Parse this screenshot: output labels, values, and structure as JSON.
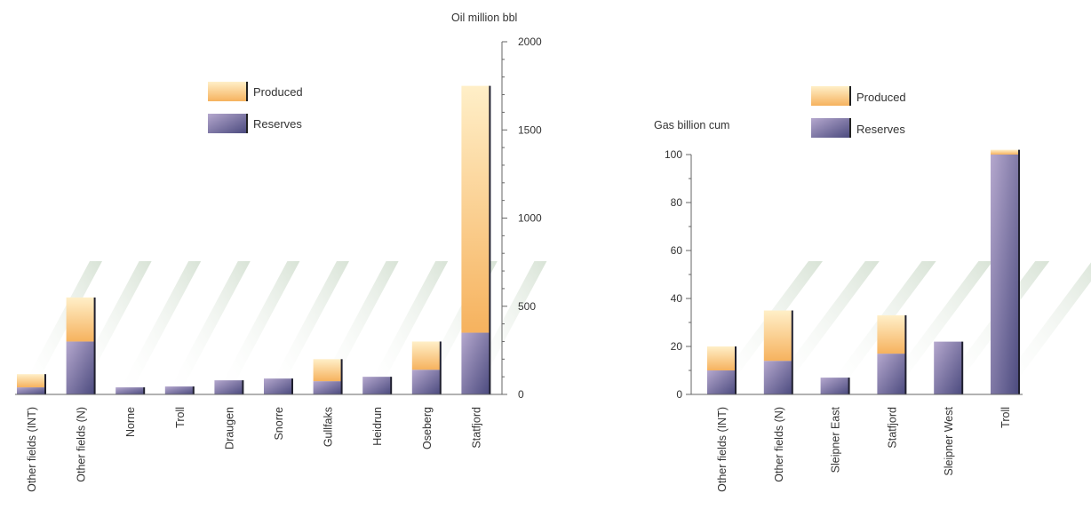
{
  "colors": {
    "produced_light": "#FFEFC8",
    "produced_dark": "#F6B25E",
    "reserves_light": "#B5A8CE",
    "reserves_dark": "#4B4A7E",
    "shadow": "#D8E3D6",
    "axis": "#666666"
  },
  "legend": {
    "produced": "Produced",
    "reserves": "Reserves"
  },
  "chart_data": [
    {
      "type": "bar",
      "stacked": true,
      "title": "",
      "ylabel": "Oil million bbl",
      "xlabel": "",
      "ylim": [
        0,
        2000
      ],
      "yticks": [
        0,
        500,
        1000,
        1500,
        2000
      ],
      "axis_side": "right",
      "legend_position": "top-center",
      "categories": [
        "Other  fields (INT)",
        "Other  fields (N)",
        "Norne",
        "Troll",
        "Draugen",
        "Snorre",
        "Gullfaks",
        "Heidrun",
        "Oseberg",
        "Statfjord"
      ],
      "series": [
        {
          "name": "Reserves",
          "values": [
            40,
            300,
            40,
            45,
            80,
            90,
            75,
            100,
            140,
            350
          ]
        },
        {
          "name": "Produced",
          "values": [
            75,
            250,
            0,
            0,
            0,
            0,
            125,
            0,
            160,
            1400
          ]
        }
      ]
    },
    {
      "type": "bar",
      "stacked": true,
      "title": "",
      "ylabel": "Gas billion cum",
      "xlabel": "",
      "ylim": [
        0,
        100
      ],
      "yticks": [
        0,
        20,
        40,
        60,
        80,
        100
      ],
      "axis_side": "left",
      "legend_position": "top-center",
      "categories": [
        "Other  fields (INT)",
        "Other  fields (N)",
        "Sleipner East",
        "Statfjord",
        "Sleipner West",
        "Troll"
      ],
      "series": [
        {
          "name": "Reserves",
          "values": [
            10,
            14,
            7,
            17,
            22,
            100
          ]
        },
        {
          "name": "Produced",
          "values": [
            10,
            21,
            0,
            16,
            0,
            2
          ]
        }
      ]
    }
  ]
}
